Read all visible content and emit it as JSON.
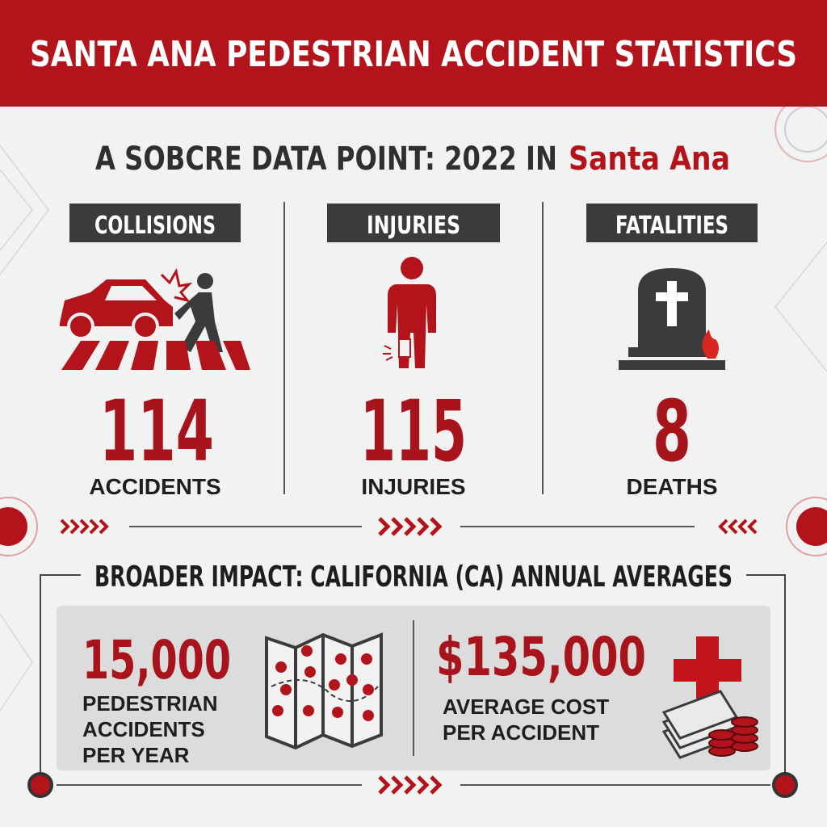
{
  "header": {
    "title": "SANTA ANA PEDESTRIAN ACCIDENT STATISTICS"
  },
  "subtitle": {
    "lead": "A SOBCRE DATA POINT: 2022 IN",
    "place": "Santa Ana"
  },
  "stats": [
    {
      "label": "COLLISIONS",
      "value": "114",
      "unit": "ACCIDENTS"
    },
    {
      "label": "INJURIES",
      "value": "115",
      "unit": "INJURIES"
    },
    {
      "label": "FATALITIES",
      "value": "8",
      "unit": "DEATHS"
    }
  ],
  "broader": {
    "title": "BROADER IMPACT: CALIFORNIA (CA) ANNUAL AVERAGES",
    "items": [
      {
        "value": "15,000",
        "lines": [
          "PEDESTRIAN",
          "ACCIDENTS",
          "PER YEAR"
        ]
      },
      {
        "value": "$135,000",
        "lines": [
          "AVERAGE COST",
          "PER ACCIDENT"
        ]
      }
    ]
  }
}
